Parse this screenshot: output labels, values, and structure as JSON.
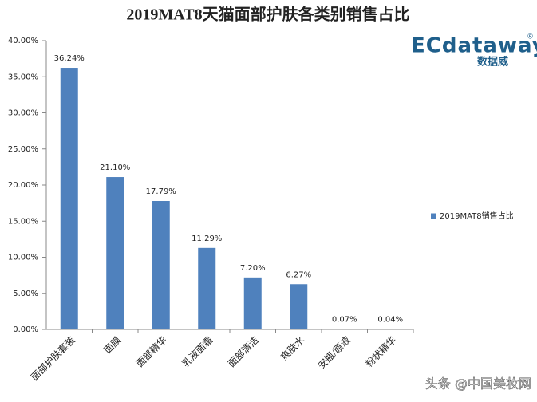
{
  "chart_data": {
    "type": "bar",
    "title": "2019MAT8天猫面部护肤各类别销售占比",
    "categories": [
      "面部护肤套装",
      "面膜",
      "面部精华",
      "乳液面霜",
      "面部清洁",
      "爽肤水",
      "安瓶/原液",
      "粉状精华"
    ],
    "series": [
      {
        "name": "2019MAT8销售占比",
        "color": "#4f81bd",
        "values": [
          36.24,
          21.1,
          17.79,
          11.29,
          7.2,
          6.27,
          0.07,
          0.04
        ],
        "value_labels": [
          "36.24%",
          "21.10%",
          "17.79%",
          "11.29%",
          "7.20%",
          "6.27%",
          "0.07%",
          "0.04%"
        ]
      }
    ],
    "ylim": [
      0,
      40
    ],
    "yticks": [
      {
        "value": 0,
        "label": "0.00%"
      },
      {
        "value": 5,
        "label": "5.00%"
      },
      {
        "value": 10,
        "label": "10.00%"
      },
      {
        "value": 15,
        "label": "15.00%"
      },
      {
        "value": 20,
        "label": "20.00%"
      },
      {
        "value": 25,
        "label": "25.00%"
      },
      {
        "value": 30,
        "label": "30.00%"
      },
      {
        "value": 35,
        "label": "35.00%"
      },
      {
        "value": 40,
        "label": "40.00%"
      }
    ],
    "legend": "right"
  },
  "logo": {
    "brand": "ECdataway",
    "sub": "数据威",
    "mark": "®"
  },
  "watermark": "头条 @中国美妆网"
}
